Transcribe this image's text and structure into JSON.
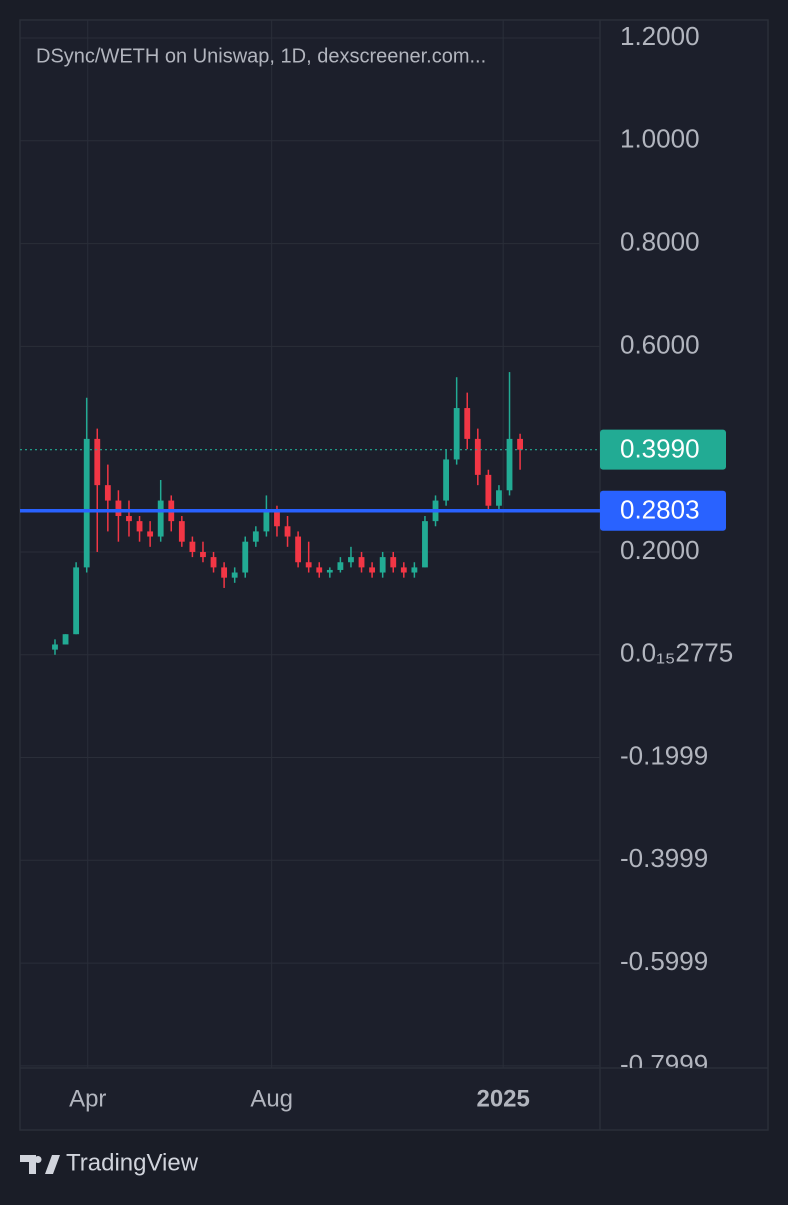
{
  "chart_data": {
    "type": "candlestick",
    "title": "DSync/WETH on Uniswap, 1D, dexscreener.com...",
    "up_color": "#22ab94",
    "down_color": "#f23645",
    "open": [
      0.01,
      0.02,
      0.04,
      0.17,
      0.42,
      0.33,
      0.3,
      0.27,
      0.26,
      0.24,
      0.23,
      0.3,
      0.26,
      0.22,
      0.2,
      0.19,
      0.17,
      0.15,
      0.16,
      0.22,
      0.24,
      0.28,
      0.25,
      0.23,
      0.18,
      0.17,
      0.16,
      0.165,
      0.18,
      0.19,
      0.17,
      0.16,
      0.19,
      0.17,
      0.16,
      0.17,
      0.26,
      0.3,
      0.38,
      0.48,
      0.42,
      0.35,
      0.29,
      0.32,
      0.42
    ],
    "high": [
      0.03,
      0.04,
      0.18,
      0.5,
      0.44,
      0.37,
      0.32,
      0.3,
      0.27,
      0.26,
      0.34,
      0.31,
      0.27,
      0.23,
      0.22,
      0.2,
      0.18,
      0.17,
      0.23,
      0.25,
      0.31,
      0.29,
      0.27,
      0.24,
      0.22,
      0.18,
      0.17,
      0.19,
      0.21,
      0.2,
      0.18,
      0.2,
      0.2,
      0.18,
      0.18,
      0.27,
      0.31,
      0.4,
      0.54,
      0.51,
      0.44,
      0.36,
      0.33,
      0.55,
      0.43
    ],
    "low": [
      0.0,
      0.02,
      0.04,
      0.16,
      0.2,
      0.24,
      0.22,
      0.23,
      0.22,
      0.21,
      0.22,
      0.24,
      0.21,
      0.19,
      0.18,
      0.16,
      0.13,
      0.14,
      0.15,
      0.21,
      0.23,
      0.23,
      0.21,
      0.17,
      0.16,
      0.15,
      0.15,
      0.16,
      0.17,
      0.16,
      0.15,
      0.15,
      0.16,
      0.15,
      0.15,
      0.17,
      0.25,
      0.29,
      0.37,
      0.4,
      0.33,
      0.28,
      0.28,
      0.31,
      0.36
    ],
    "close": [
      0.02,
      0.04,
      0.17,
      0.42,
      0.33,
      0.3,
      0.27,
      0.26,
      0.24,
      0.23,
      0.3,
      0.26,
      0.22,
      0.2,
      0.19,
      0.17,
      0.15,
      0.16,
      0.22,
      0.24,
      0.28,
      0.25,
      0.23,
      0.18,
      0.17,
      0.16,
      0.165,
      0.18,
      0.19,
      0.17,
      0.16,
      0.19,
      0.17,
      0.16,
      0.17,
      0.26,
      0.3,
      0.38,
      0.48,
      0.42,
      0.35,
      0.29,
      0.32,
      0.42,
      0.399
    ],
    "xlim": [
      -3.31,
      51.56
    ],
    "xticks": [
      {
        "value": 3.1,
        "label": "Apr"
      },
      {
        "value": 20.5,
        "label": "Aug"
      },
      {
        "value": 42.4,
        "label": "2025"
      }
    ],
    "ylim": [
      -0.804,
      1.235
    ],
    "yticks": [
      {
        "value": 1.2,
        "label": "1.2000"
      },
      {
        "value": 1.0,
        "label": "1.0000"
      },
      {
        "value": 0.8,
        "label": "0.8000"
      },
      {
        "value": 0.6,
        "label": "0.6000"
      },
      {
        "value": 0.2,
        "label": "0.2000"
      },
      {
        "value": 2.775e-16,
        "label": "0.0₁₅2775"
      },
      {
        "value": -0.1999,
        "label": "-0.1999"
      },
      {
        "value": -0.3999,
        "label": "-0.3999"
      },
      {
        "value": -0.5999,
        "label": "-0.5999"
      },
      {
        "value": -0.7999,
        "label": "-0.7999"
      }
    ],
    "grid": true,
    "price_lines": [
      {
        "value": 0.399,
        "label": "0.3990",
        "color": "#22ab94",
        "style": "dotted"
      },
      {
        "value": 0.2803,
        "color": "#2962ff",
        "style": "solid"
      }
    ]
  },
  "branding": "TradingView"
}
